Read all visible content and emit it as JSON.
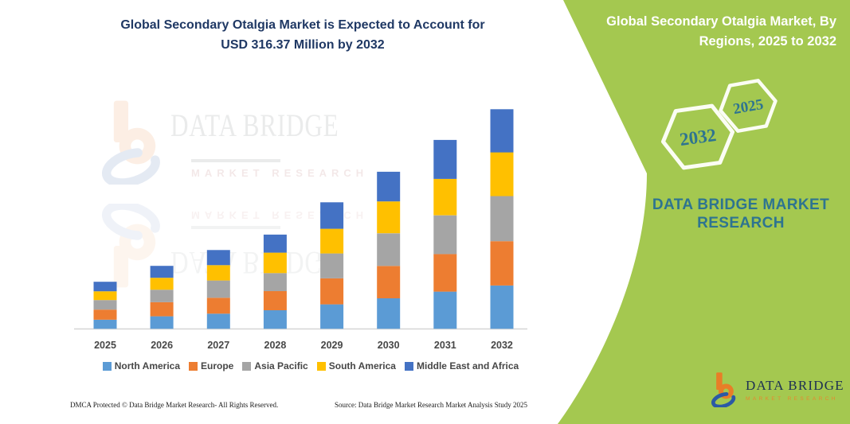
{
  "header": {
    "title_line1": "Global Secondary Otalgia Market is Expected to Account for",
    "title_line2": "USD 316.37 Million by 2032"
  },
  "right_panel": {
    "title_line1": "Global Secondary Otalgia Market, By",
    "title_line2": "Regions, 2025 to 2032",
    "hexagons": [
      {
        "label": "2032"
      },
      {
        "label": "2025"
      }
    ],
    "brand_line1": "DATA BRIDGE MARKET",
    "brand_line2": "RESEARCH",
    "logo": {
      "mark_icon": "dbmr-b-swoosh-logo",
      "name": "DATA BRIDGE",
      "tagline": "MARKET RESEARCH"
    },
    "colors": {
      "green": "#A4C850",
      "teal": "#2E7490",
      "hexagon_outline": "#FBFDF4",
      "logo_orange": "#E87E27",
      "logo_blue": "#2B59A5",
      "logo_navy": "#1C2F52"
    }
  },
  "watermark": {
    "mark_icon": "dbmr-b-swoosh-logo",
    "brand": "DATA BRIDGE",
    "tagline": "MARKET RESEARCH"
  },
  "footer": {
    "left": "DMCA Protected © Data Bridge Market Research-  All Rights Reserved.",
    "right": "Source: Data Bridge Market Research  Market Analysis Study 2025"
  },
  "chart_data": {
    "type": "bar",
    "stacked": true,
    "title": "Global Secondary Otalgia Market is Expected to Account for USD 316.37 Million by 2032",
    "unit": "USD Million",
    "categories": [
      "2025",
      "2026",
      "2027",
      "2028",
      "2029",
      "2030",
      "2031",
      "2032"
    ],
    "series": [
      {
        "name": "North America",
        "color": "#5B9BD5",
        "values": [
          13.0,
          18.0,
          21.8,
          26.7,
          35.2,
          43.9,
          53.5,
          62.4
        ]
      },
      {
        "name": "Europe",
        "color": "#ED7D31",
        "values": [
          14.6,
          20.3,
          22.9,
          27.5,
          37.5,
          46.7,
          54.2,
          63.8
        ]
      },
      {
        "name": "Asia Pacific",
        "color": "#A5A5A5",
        "values": [
          13.8,
          18.0,
          24.9,
          26.0,
          35.9,
          47.0,
          55.8,
          65.0
        ]
      },
      {
        "name": "South America",
        "color": "#FFC000",
        "values": [
          12.6,
          17.2,
          22.1,
          29.5,
          35.5,
          45.9,
          52.4,
          63.0
        ]
      },
      {
        "name": "Middle East and Africa",
        "color": "#4472C4",
        "values": [
          13.8,
          17.2,
          21.8,
          26.0,
          38.2,
          42.8,
          56.2,
          62.2
        ]
      }
    ],
    "totals": [
      67.8,
      90.7,
      113.5,
      135.7,
      182.3,
      226.3,
      272.1,
      316.37
    ],
    "labeled_value": "USD 316.37 Million by 2032",
    "note": "Only the 2032 total is labeled in the image; per-region segment values are estimated from bar heights.",
    "xlabel": "",
    "ylabel": "",
    "y_axis_visible": false,
    "grid": false,
    "legend_position": "bottom"
  }
}
